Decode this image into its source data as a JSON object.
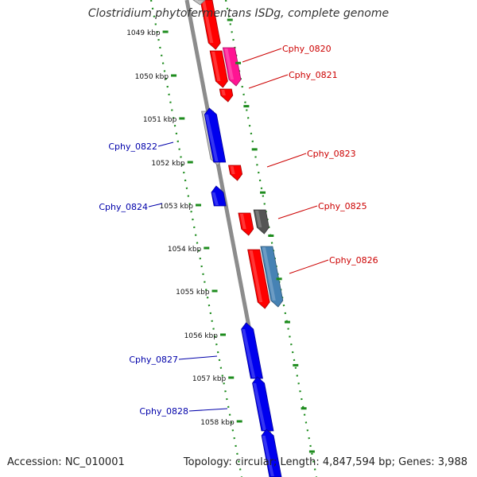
{
  "title": "Clostridium phytofermentans ISDg, complete genome",
  "accession_text": "Accession: NC_010001",
  "summary_text": "Topology: circular; Length: 4,847,594 bp; Genes: 3,988",
  "colors": {
    "backbone": "#8c8c8c",
    "dots": "#1e8c1e",
    "forward_label": "#cc0000",
    "reverse_label": "#0000aa",
    "red": "#ff0000",
    "pink": "#ff1493",
    "blue": "#0000ee",
    "gray": "#c0c0c0",
    "darkgray": "#555555",
    "steelblue": "#4682b4"
  },
  "ticks": [
    "1049 kbp",
    "1050 kbp",
    "1051 kbp",
    "1052 kbp",
    "1053 kbp",
    "1054 kbp",
    "1055 kbp",
    "1056 kbp",
    "1057 kbp",
    "1058 kbp"
  ],
  "genes": [
    {
      "name": "Cphy_0820",
      "strand": "forward",
      "color": "pink"
    },
    {
      "name": "Cphy_0821",
      "strand": "forward",
      "color": "red"
    },
    {
      "name": "Cphy_0822",
      "strand": "reverse",
      "color": "blue"
    },
    {
      "name": "Cphy_0823",
      "strand": "forward",
      "color": "red"
    },
    {
      "name": "Cphy_0824",
      "strand": "reverse",
      "color": "blue"
    },
    {
      "name": "Cphy_0825",
      "strand": "forward",
      "color": "darkgray"
    },
    {
      "name": "Cphy_0826",
      "strand": "forward",
      "color": "steelblue"
    },
    {
      "name": "Cphy_0827",
      "strand": "reverse",
      "color": "blue"
    },
    {
      "name": "Cphy_0828",
      "strand": "reverse",
      "color": "blue"
    }
  ]
}
